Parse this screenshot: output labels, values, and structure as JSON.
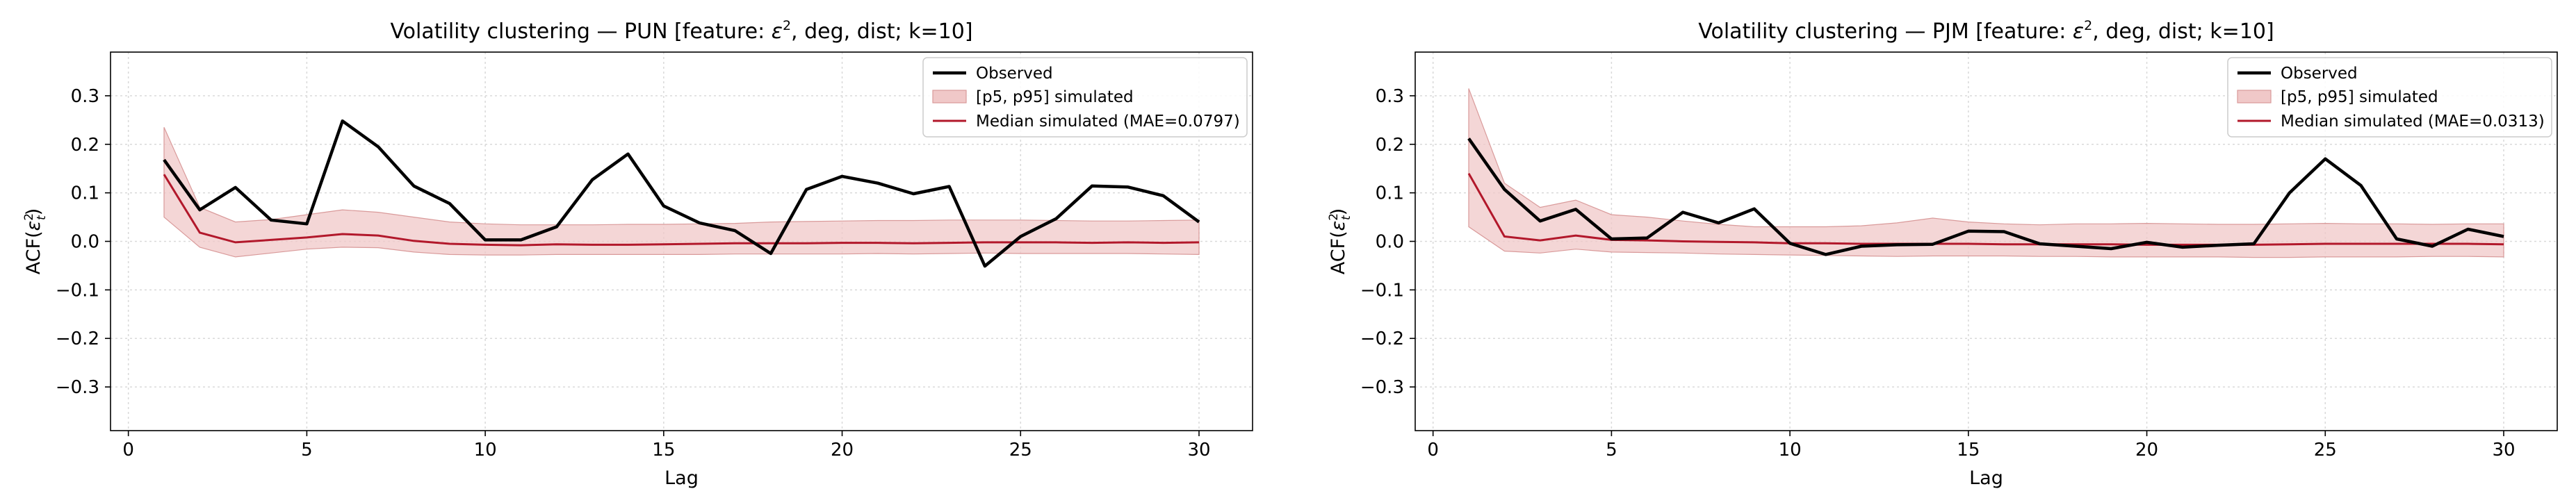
{
  "chart_data": [
    {
      "type": "line",
      "title_prefix": "Volatility clustering — PUN  [feature: ",
      "title_math": "ε",
      "title_sup": "2",
      "title_suffix": ", deg, dist;  k=10]",
      "xlabel": "Lag",
      "ylabel_prefix": "ACF(",
      "ylabel_math": "ε",
      "ylabel_sub": "t",
      "ylabel_sup": "2",
      "ylabel_suffix": ")",
      "xlim": [
        -0.5,
        31.5
      ],
      "ylim": [
        -0.39,
        0.39
      ],
      "xticks": [
        0,
        5,
        10,
        15,
        20,
        25,
        30
      ],
      "yticks": [
        -0.3,
        -0.2,
        -0.1,
        0.0,
        0.1,
        0.2,
        0.3
      ],
      "ytick_labels": [
        "−0.3",
        "−0.2",
        "−0.1",
        "0.0",
        "0.1",
        "0.2",
        "0.3"
      ],
      "grid": true,
      "legend_position": "top-right",
      "legend": [
        "Observed",
        "[p5, p95] simulated",
        "Median simulated  (MAE=0.0797)"
      ],
      "x": [
        1,
        2,
        3,
        4,
        5,
        6,
        7,
        8,
        9,
        10,
        11,
        12,
        13,
        14,
        15,
        16,
        17,
        18,
        19,
        20,
        21,
        22,
        23,
        24,
        25,
        26,
        27,
        28,
        29,
        30
      ],
      "observed": [
        0.168,
        0.065,
        0.111,
        0.044,
        0.036,
        0.248,
        0.195,
        0.114,
        0.078,
        0.003,
        0.003,
        0.03,
        0.127,
        0.18,
        0.073,
        0.038,
        0.022,
        -0.025,
        0.107,
        0.134,
        0.12,
        0.098,
        0.113,
        -0.051,
        0.01,
        0.047,
        0.114,
        0.112,
        0.094,
        0.04
      ],
      "median": [
        0.138,
        0.018,
        -0.002,
        0.003,
        0.008,
        0.015,
        0.012,
        0.001,
        -0.005,
        -0.007,
        -0.008,
        -0.006,
        -0.007,
        -0.007,
        -0.006,
        -0.005,
        -0.004,
        -0.004,
        -0.004,
        -0.003,
        -0.003,
        -0.004,
        -0.003,
        -0.002,
        -0.002,
        -0.002,
        -0.003,
        -0.002,
        -0.003,
        -0.002
      ],
      "p5": [
        0.05,
        -0.012,
        -0.032,
        -0.024,
        -0.016,
        -0.012,
        -0.013,
        -0.022,
        -0.027,
        -0.028,
        -0.028,
        -0.027,
        -0.027,
        -0.027,
        -0.027,
        -0.027,
        -0.026,
        -0.026,
        -0.026,
        -0.026,
        -0.025,
        -0.026,
        -0.025,
        -0.024,
        -0.025,
        -0.025,
        -0.025,
        -0.025,
        -0.026,
        -0.027
      ],
      "p95": [
        0.235,
        0.07,
        0.04,
        0.045,
        0.055,
        0.065,
        0.06,
        0.05,
        0.04,
        0.036,
        0.034,
        0.034,
        0.034,
        0.035,
        0.035,
        0.036,
        0.037,
        0.04,
        0.041,
        0.042,
        0.043,
        0.043,
        0.044,
        0.044,
        0.044,
        0.043,
        0.042,
        0.042,
        0.043,
        0.044
      ]
    },
    {
      "type": "line",
      "title_prefix": "Volatility clustering — PJM  [feature: ",
      "title_math": "ε",
      "title_sup": "2",
      "title_suffix": ", deg, dist;  k=10]",
      "xlabel": "Lag",
      "ylabel_prefix": "ACF(",
      "ylabel_math": "ε",
      "ylabel_sub": "t",
      "ylabel_sup": "2",
      "ylabel_suffix": ")",
      "xlim": [
        -0.5,
        31.5
      ],
      "ylim": [
        -0.39,
        0.39
      ],
      "xticks": [
        0,
        5,
        10,
        15,
        20,
        25,
        30
      ],
      "yticks": [
        -0.3,
        -0.2,
        -0.1,
        0.0,
        0.1,
        0.2,
        0.3
      ],
      "ytick_labels": [
        "−0.3",
        "−0.2",
        "−0.1",
        "0.0",
        "0.1",
        "0.2",
        "0.3"
      ],
      "grid": true,
      "legend_position": "top-right",
      "legend": [
        "Observed",
        "[p5, p95] simulated",
        "Median simulated  (MAE=0.0313)"
      ],
      "x": [
        1,
        2,
        3,
        4,
        5,
        6,
        7,
        8,
        9,
        10,
        11,
        12,
        13,
        14,
        15,
        16,
        17,
        18,
        19,
        20,
        21,
        22,
        23,
        24,
        25,
        26,
        27,
        28,
        29,
        30
      ],
      "observed": [
        0.212,
        0.107,
        0.042,
        0.066,
        0.005,
        0.007,
        0.06,
        0.038,
        0.067,
        -0.004,
        -0.027,
        -0.01,
        -0.007,
        -0.006,
        0.021,
        0.02,
        -0.005,
        -0.01,
        -0.015,
        -0.002,
        -0.012,
        -0.008,
        -0.005,
        0.1,
        0.17,
        0.115,
        0.005,
        -0.01,
        0.025,
        0.01
      ],
      "median": [
        0.14,
        0.01,
        0.002,
        0.012,
        0.003,
        0.002,
        0.0,
        -0.001,
        -0.002,
        -0.004,
        -0.004,
        -0.005,
        -0.005,
        -0.005,
        -0.005,
        -0.006,
        -0.006,
        -0.006,
        -0.006,
        -0.007,
        -0.007,
        -0.007,
        -0.007,
        -0.006,
        -0.005,
        -0.005,
        -0.005,
        -0.005,
        -0.005,
        -0.006
      ],
      "p5": [
        0.03,
        -0.02,
        -0.024,
        -0.016,
        -0.022,
        -0.023,
        -0.024,
        -0.026,
        -0.027,
        -0.028,
        -0.029,
        -0.03,
        -0.031,
        -0.03,
        -0.03,
        -0.03,
        -0.031,
        -0.031,
        -0.032,
        -0.032,
        -0.032,
        -0.032,
        -0.033,
        -0.033,
        -0.032,
        -0.032,
        -0.032,
        -0.031,
        -0.031,
        -0.032
      ],
      "p95": [
        0.315,
        0.12,
        0.07,
        0.085,
        0.055,
        0.05,
        0.042,
        0.035,
        0.03,
        0.03,
        0.03,
        0.032,
        0.038,
        0.048,
        0.04,
        0.036,
        0.034,
        0.036,
        0.036,
        0.037,
        0.036,
        0.035,
        0.035,
        0.036,
        0.037,
        0.036,
        0.036,
        0.035,
        0.036,
        0.036
      ]
    }
  ],
  "colors": {
    "observed": "#000000",
    "median": "#b2182b",
    "band_fill": "#f0c8c8",
    "band_edge": "#d99a9a",
    "grid": "#d9d9d9",
    "axis": "#000000"
  }
}
